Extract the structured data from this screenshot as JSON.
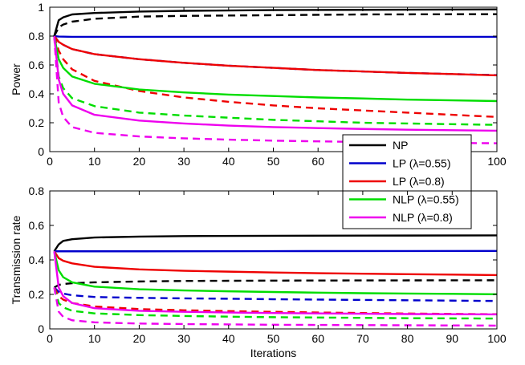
{
  "chart_data": [
    {
      "type": "line",
      "ylabel": "Power",
      "xlabel": "",
      "xlim": [
        0,
        100
      ],
      "ylim": [
        0,
        1
      ],
      "xticks": [
        "0",
        "10",
        "20",
        "30",
        "40",
        "50",
        "60",
        "70",
        "80",
        "90",
        "100"
      ],
      "yticks": [
        "0",
        "0.2",
        "0.4",
        "0.6",
        "0.8",
        "1"
      ],
      "legend": {
        "placement": "bottom-right",
        "entries": [
          {
            "label": "NP",
            "color": "#000000"
          },
          {
            "label": "LP (λ=0.55)",
            "color": "#0000cc"
          },
          {
            "label": "LP (λ=0.8)",
            "color": "#ee0000"
          },
          {
            "label": "NLP (λ=0.55)",
            "color": "#00dd00"
          },
          {
            "label": "NLP (λ=0.8)",
            "color": "#ee00ee"
          }
        ]
      },
      "series": [
        {
          "color": "#000000",
          "style": "solid",
          "x": [
            1,
            2,
            3,
            5,
            10,
            20,
            30,
            50,
            70,
            100
          ],
          "y": [
            0.8,
            0.91,
            0.93,
            0.95,
            0.96,
            0.97,
            0.975,
            0.98,
            0.982,
            0.985
          ]
        },
        {
          "color": "#000000",
          "style": "dashed",
          "x": [
            1,
            2,
            3,
            5,
            10,
            20,
            30,
            50,
            70,
            100
          ],
          "y": [
            0.8,
            0.86,
            0.88,
            0.9,
            0.92,
            0.935,
            0.94,
            0.945,
            0.95,
            0.952
          ]
        },
        {
          "color": "#0000cc",
          "style": "solid",
          "x": [
            1,
            2,
            5,
            10,
            20,
            50,
            100
          ],
          "y": [
            0.8,
            0.797,
            0.795,
            0.795,
            0.795,
            0.795,
            0.795
          ]
        },
        {
          "color": "#0000cc",
          "style": "dashed",
          "x": [
            1,
            2,
            3,
            5,
            10,
            20,
            30,
            40,
            50,
            60,
            70,
            80,
            90,
            100
          ],
          "y": [
            0.8,
            0.76,
            0.74,
            0.71,
            0.675,
            0.64,
            0.615,
            0.595,
            0.58,
            0.565,
            0.555,
            0.545,
            0.537,
            0.53
          ]
        },
        {
          "color": "#ee0000",
          "style": "solid",
          "x": [
            1,
            2,
            3,
            5,
            10,
            20,
            30,
            40,
            50,
            60,
            70,
            80,
            90,
            100
          ],
          "y": [
            0.8,
            0.76,
            0.74,
            0.71,
            0.675,
            0.64,
            0.615,
            0.595,
            0.58,
            0.565,
            0.555,
            0.545,
            0.537,
            0.528
          ]
        },
        {
          "color": "#ee0000",
          "style": "dashed",
          "x": [
            1,
            2,
            3,
            5,
            10,
            20,
            30,
            40,
            50,
            60,
            70,
            80,
            90,
            100
          ],
          "y": [
            0.8,
            0.7,
            0.64,
            0.57,
            0.49,
            0.42,
            0.375,
            0.345,
            0.32,
            0.3,
            0.285,
            0.27,
            0.255,
            0.24
          ]
        },
        {
          "color": "#00dd00",
          "style": "solid",
          "x": [
            1,
            2,
            3,
            5,
            10,
            20,
            30,
            40,
            50,
            60,
            70,
            80,
            90,
            100
          ],
          "y": [
            0.8,
            0.64,
            0.58,
            0.52,
            0.47,
            0.43,
            0.41,
            0.395,
            0.385,
            0.375,
            0.368,
            0.36,
            0.355,
            0.35
          ]
        },
        {
          "color": "#00dd00",
          "style": "dashed",
          "x": [
            1,
            2,
            3,
            5,
            10,
            20,
            30,
            40,
            50,
            60,
            70,
            80,
            90,
            100
          ],
          "y": [
            0.8,
            0.52,
            0.44,
            0.37,
            0.315,
            0.27,
            0.25,
            0.235,
            0.22,
            0.21,
            0.2,
            0.195,
            0.19,
            0.185
          ]
        },
        {
          "color": "#ee00ee",
          "style": "solid",
          "x": [
            1,
            2,
            3,
            5,
            10,
            20,
            30,
            40,
            50,
            60,
            70,
            80,
            90,
            100
          ],
          "y": [
            0.8,
            0.5,
            0.4,
            0.32,
            0.255,
            0.215,
            0.195,
            0.18,
            0.17,
            0.163,
            0.157,
            0.152,
            0.148,
            0.145
          ]
        },
        {
          "color": "#ee00ee",
          "style": "dashed",
          "x": [
            1,
            2,
            3,
            5,
            10,
            20,
            30,
            40,
            50,
            60,
            70,
            80,
            90,
            100
          ],
          "y": [
            0.8,
            0.34,
            0.24,
            0.17,
            0.13,
            0.105,
            0.092,
            0.083,
            0.076,
            0.071,
            0.067,
            0.063,
            0.06,
            0.058
          ]
        }
      ]
    },
    {
      "type": "line",
      "ylabel": "Transmission rate",
      "xlabel": "Iterations",
      "xlim": [
        0,
        100
      ],
      "ylim": [
        0,
        0.8
      ],
      "xticks": [
        "0",
        "10",
        "20",
        "30",
        "40",
        "50",
        "60",
        "70",
        "80",
        "90",
        "100"
      ],
      "yticks": [
        "0",
        "0.2",
        "0.4",
        "0.6",
        "0.8"
      ],
      "series": [
        {
          "color": "#000000",
          "style": "solid",
          "x": [
            1,
            2,
            3,
            5,
            10,
            20,
            30,
            50,
            70,
            100
          ],
          "y": [
            0.45,
            0.49,
            0.51,
            0.52,
            0.53,
            0.535,
            0.538,
            0.54,
            0.541,
            0.542
          ]
        },
        {
          "color": "#000000",
          "style": "dashed",
          "x": [
            1,
            2,
            3,
            5,
            10,
            20,
            30,
            50,
            70,
            100
          ],
          "y": [
            0.24,
            0.255,
            0.26,
            0.265,
            0.27,
            0.275,
            0.278,
            0.28,
            0.281,
            0.282
          ]
        },
        {
          "color": "#0000cc",
          "style": "solid",
          "x": [
            1,
            2,
            5,
            10,
            20,
            50,
            100
          ],
          "y": [
            0.45,
            0.45,
            0.45,
            0.45,
            0.45,
            0.451,
            0.452
          ]
        },
        {
          "color": "#0000cc",
          "style": "dashed",
          "x": [
            1,
            2,
            3,
            5,
            10,
            20,
            30,
            40,
            50,
            60,
            70,
            80,
            90,
            100
          ],
          "y": [
            0.24,
            0.215,
            0.205,
            0.195,
            0.185,
            0.18,
            0.177,
            0.175,
            0.172,
            0.17,
            0.168,
            0.166,
            0.164,
            0.162
          ]
        },
        {
          "color": "#ee0000",
          "style": "solid",
          "x": [
            1,
            2,
            3,
            5,
            10,
            20,
            30,
            40,
            50,
            60,
            70,
            80,
            90,
            100
          ],
          "y": [
            0.45,
            0.41,
            0.395,
            0.38,
            0.36,
            0.345,
            0.337,
            0.332,
            0.327,
            0.323,
            0.32,
            0.317,
            0.315,
            0.312
          ]
        },
        {
          "color": "#ee0000",
          "style": "dashed",
          "x": [
            1,
            2,
            3,
            5,
            10,
            20,
            30,
            40,
            50,
            60,
            70,
            80,
            90,
            100
          ],
          "y": [
            0.24,
            0.19,
            0.17,
            0.15,
            0.13,
            0.115,
            0.108,
            0.103,
            0.099,
            0.095,
            0.092,
            0.089,
            0.087,
            0.085
          ]
        },
        {
          "color": "#00dd00",
          "style": "solid",
          "x": [
            1,
            2,
            3,
            5,
            10,
            20,
            30,
            40,
            50,
            60,
            70,
            80,
            90,
            100
          ],
          "y": [
            0.45,
            0.34,
            0.3,
            0.27,
            0.245,
            0.23,
            0.223,
            0.218,
            0.214,
            0.21,
            0.207,
            0.205,
            0.203,
            0.201
          ]
        },
        {
          "color": "#00dd00",
          "style": "dashed",
          "x": [
            1,
            2,
            3,
            5,
            10,
            20,
            30,
            40,
            50,
            60,
            70,
            80,
            90,
            100
          ],
          "y": [
            0.24,
            0.15,
            0.125,
            0.105,
            0.09,
            0.08,
            0.075,
            0.071,
            0.068,
            0.066,
            0.064,
            0.062,
            0.061,
            0.06
          ]
        },
        {
          "color": "#ee00ee",
          "style": "solid",
          "x": [
            1,
            2,
            3,
            5,
            10,
            20,
            30,
            40,
            50,
            60,
            70,
            80,
            90,
            100
          ],
          "y": [
            0.45,
            0.24,
            0.19,
            0.15,
            0.12,
            0.105,
            0.099,
            0.095,
            0.092,
            0.09,
            0.088,
            0.086,
            0.085,
            0.084
          ]
        },
        {
          "color": "#ee00ee",
          "style": "dashed",
          "x": [
            1,
            2,
            3,
            5,
            10,
            20,
            30,
            40,
            50,
            60,
            70,
            80,
            90,
            100
          ],
          "y": [
            0.24,
            0.1,
            0.07,
            0.05,
            0.038,
            0.031,
            0.028,
            0.026,
            0.024,
            0.023,
            0.022,
            0.021,
            0.02,
            0.019
          ]
        }
      ]
    }
  ]
}
